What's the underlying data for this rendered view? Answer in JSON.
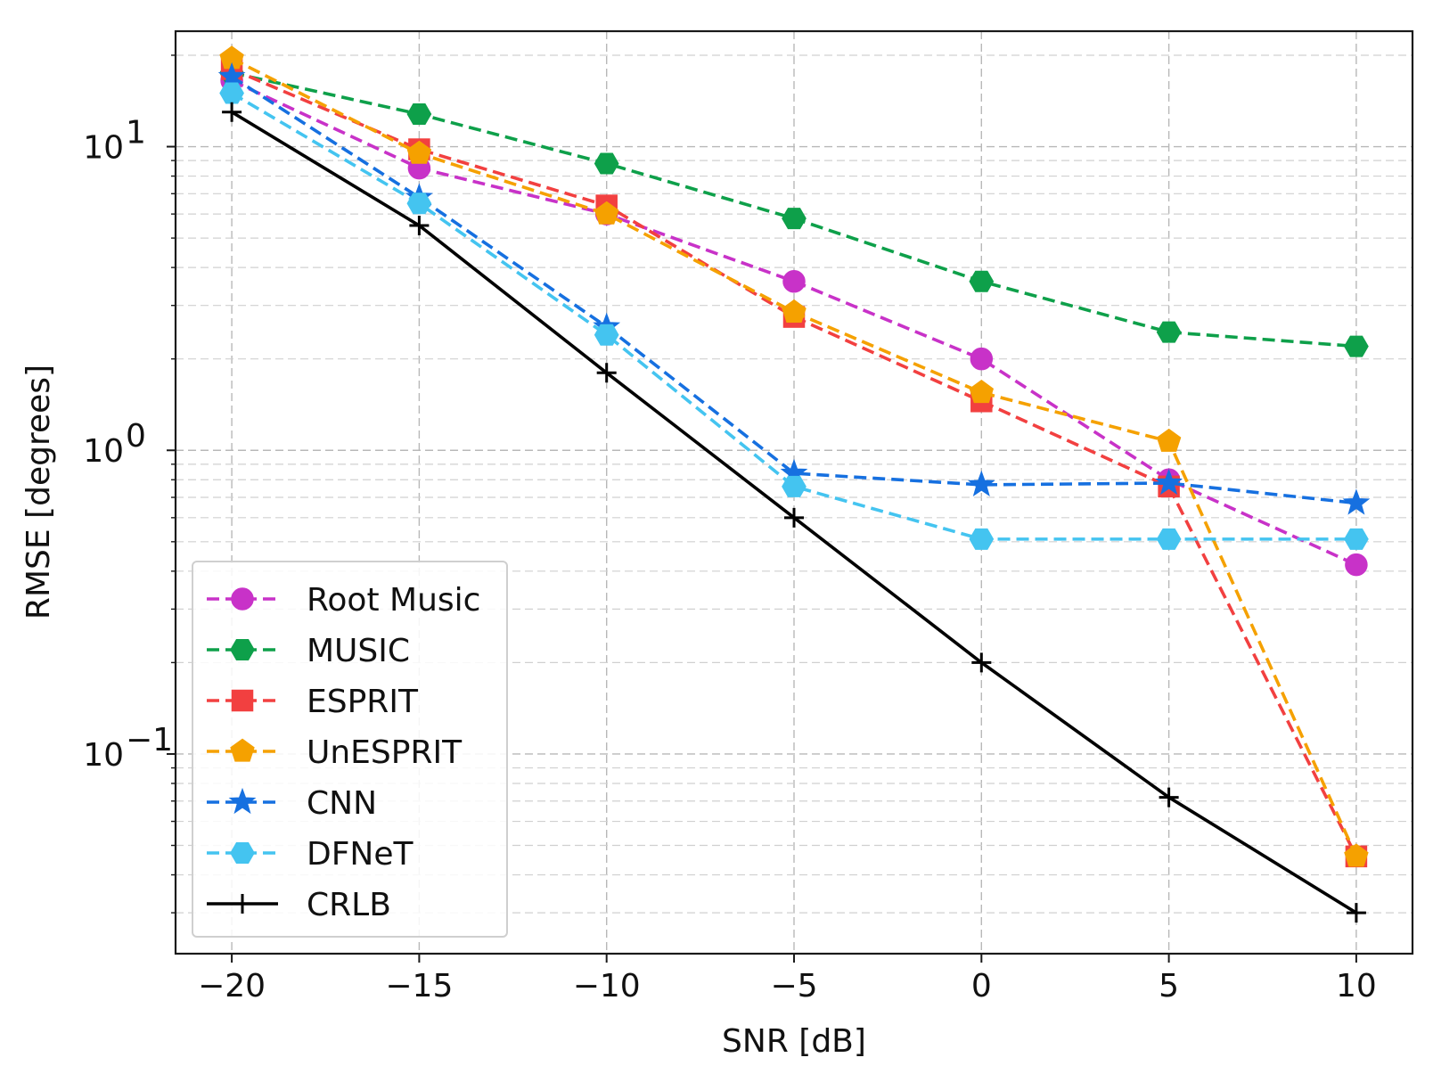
{
  "chart_data": {
    "type": "line",
    "xlabel": "SNR [dB]",
    "ylabel": "RMSE [degrees]",
    "yscale": "log",
    "xlim": [
      -21.5,
      11.5
    ],
    "ylim": [
      0.022,
      24
    ],
    "x": [
      -20,
      -15,
      -10,
      -5,
      0,
      5,
      10
    ],
    "x_tick_labels": [
      "−20",
      "−15",
      "−10",
      "−5",
      "0",
      "5",
      "10"
    ],
    "y_ticks": [
      {
        "value": 10,
        "base": "10",
        "exp": "1"
      },
      {
        "value": 1,
        "base": "10",
        "exp": "0"
      },
      {
        "value": 0.1,
        "base": "10",
        "exp": "−1"
      }
    ],
    "grid": true,
    "legend_position": "lower-left",
    "series": [
      {
        "name": "Root Music",
        "color": "#c832c8",
        "marker": "circle",
        "linestyle": "dashed",
        "values": [
          16.5,
          8.5,
          6.0,
          3.6,
          2.0,
          0.8,
          0.42
        ]
      },
      {
        "name": "MUSIC",
        "color": "#0ea04a",
        "marker": "hexagon",
        "linestyle": "dashed",
        "values": [
          17.5,
          12.8,
          8.8,
          5.8,
          3.6,
          2.45,
          2.2
        ]
      },
      {
        "name": "ESPRIT",
        "color": "#f24040",
        "marker": "square",
        "linestyle": "dashed",
        "values": [
          18.0,
          9.8,
          6.4,
          2.75,
          1.45,
          0.76,
          0.046
        ]
      },
      {
        "name": "UnESPRIT",
        "color": "#f5a100",
        "marker": "pentagon",
        "linestyle": "dashed",
        "values": [
          19.5,
          9.5,
          6.0,
          2.85,
          1.55,
          1.07,
          0.046
        ]
      },
      {
        "name": "CNN",
        "color": "#1670e0",
        "marker": "star",
        "linestyle": "dashed",
        "values": [
          17.0,
          6.8,
          2.55,
          0.84,
          0.77,
          0.78,
          0.67
        ]
      },
      {
        "name": "DFNeT",
        "color": "#44c4f0",
        "marker": "hexagon",
        "linestyle": "dashed",
        "values": [
          15.0,
          6.5,
          2.4,
          0.76,
          0.51,
          0.51,
          0.51
        ]
      },
      {
        "name": "CRLB",
        "color": "#000000",
        "marker": "plus",
        "linestyle": "solid",
        "values": [
          13.0,
          5.5,
          1.8,
          0.6,
          0.2,
          0.072,
          0.03
        ]
      }
    ]
  }
}
